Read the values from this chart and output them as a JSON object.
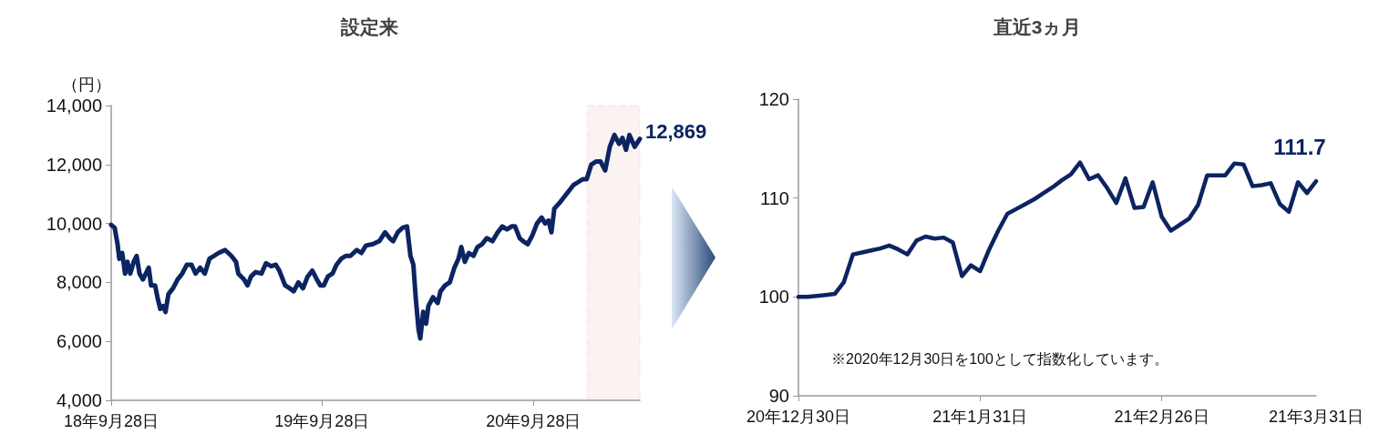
{
  "chart_data": [
    {
      "type": "line",
      "title": "設定来",
      "ylabel": "（円）",
      "color": "#0c2461",
      "marker": "none",
      "line_style": "solid",
      "grid": false,
      "x": [
        "2018-09-28",
        "2018-10-04",
        "2018-10-09",
        "2018-10-12",
        "2018-10-17",
        "2018-10-22",
        "2018-10-26",
        "2018-10-31",
        "2018-11-06",
        "2018-11-11",
        "2018-11-16",
        "2018-11-22",
        "2018-11-27",
        "2018-12-02",
        "2018-12-06",
        "2018-12-13",
        "2018-12-17",
        "2018-12-22",
        "2018-12-27",
        "2018-12-31",
        "2019-01-05",
        "2019-01-13",
        "2019-01-21",
        "2019-01-29",
        "2019-02-06",
        "2019-02-14",
        "2019-02-21",
        "2019-03-01",
        "2019-03-09",
        "2019-03-17",
        "2019-03-25",
        "2019-04-02",
        "2019-04-13",
        "2019-04-24",
        "2019-05-02",
        "2019-05-06",
        "2019-05-16",
        "2019-05-22",
        "2019-05-28",
        "2019-06-05",
        "2019-06-15",
        "2019-06-23",
        "2019-07-02",
        "2019-07-10",
        "2019-07-16",
        "2019-07-26",
        "2019-08-03",
        "2019-08-10",
        "2019-08-18",
        "2019-08-26",
        "2019-09-03",
        "2019-09-11",
        "2019-09-19",
        "2019-09-25",
        "2019-10-01",
        "2019-10-08",
        "2019-10-16",
        "2019-10-23",
        "2019-10-31",
        "2019-11-08",
        "2019-11-16",
        "2019-11-27",
        "2019-12-05",
        "2019-12-13",
        "2019-12-25",
        "2020-01-05",
        "2020-01-15",
        "2020-01-23",
        "2020-01-29",
        "2020-02-06",
        "2020-02-14",
        "2020-02-22",
        "2020-02-28",
        "2020-03-04",
        "2020-03-08",
        "2020-03-13",
        "2020-03-16",
        "2020-03-21",
        "2020-03-26",
        "2020-03-30",
        "2020-04-07",
        "2020-04-15",
        "2020-04-20",
        "2020-04-28",
        "2020-05-06",
        "2020-05-14",
        "2020-05-21",
        "2020-05-26",
        "2020-06-01",
        "2020-06-08",
        "2020-06-16",
        "2020-06-23",
        "2020-07-01",
        "2020-07-09",
        "2020-07-19",
        "2020-07-28",
        "2020-08-05",
        "2020-08-13",
        "2020-08-21",
        "2020-08-27",
        "2020-09-04",
        "2020-09-10",
        "2020-09-18",
        "2020-09-26",
        "2020-10-04",
        "2020-10-12",
        "2020-10-18",
        "2020-10-24",
        "2020-10-29",
        "2020-11-03",
        "2020-11-12",
        "2020-11-20",
        "2020-11-28",
        "2020-12-06",
        "2020-12-14",
        "2020-12-22",
        "2020-12-29",
        "2021-01-06",
        "2021-01-14",
        "2021-01-22",
        "2021-01-30",
        "2021-02-07",
        "2021-02-15",
        "2021-02-23",
        "2021-03-01",
        "2021-03-07",
        "2021-03-13",
        "2021-03-22",
        "2021-03-31"
      ],
      "values": [
        9950,
        9850,
        9300,
        8800,
        9000,
        8300,
        8700,
        8300,
        8700,
        8900,
        8300,
        8100,
        8300,
        8500,
        7900,
        7900,
        7500,
        7100,
        7200,
        7000,
        7600,
        7800,
        8100,
        8300,
        8600,
        8600,
        8300,
        8500,
        8300,
        8800,
        8900,
        9000,
        9100,
        8900,
        8700,
        8300,
        8100,
        7900,
        8200,
        8350,
        8300,
        8650,
        8550,
        8600,
        8400,
        7900,
        7800,
        7700,
        8000,
        7800,
        8200,
        8400,
        8100,
        7900,
        7900,
        8200,
        8300,
        8600,
        8800,
        8900,
        8900,
        9100,
        9000,
        9250,
        9300,
        9400,
        9700,
        9500,
        9400,
        9700,
        9850,
        9900,
        8900,
        8600,
        7500,
        6400,
        6100,
        7000,
        6600,
        7200,
        7500,
        7300,
        7700,
        7900,
        8000,
        8500,
        8800,
        9200,
        8700,
        9000,
        8900,
        9200,
        9300,
        9500,
        9400,
        9700,
        9900,
        9800,
        9900,
        9900,
        9500,
        9400,
        9300,
        9600,
        10000,
        10200,
        10000,
        10100,
        9700,
        10500,
        10700,
        10900,
        11100,
        11300,
        11400,
        11500,
        11500,
        12000,
        12100,
        12100,
        11800,
        12600,
        13000,
        12700,
        12900,
        12500,
        13000,
        12600,
        12869
      ],
      "value_labels": [
        null,
        null,
        null,
        null,
        null,
        null,
        null,
        null,
        null,
        null,
        null,
        null,
        null,
        null,
        null,
        null,
        null,
        null,
        null,
        null,
        null,
        null,
        null,
        null,
        null,
        null,
        null,
        null,
        null,
        null,
        null,
        null,
        null,
        null,
        null,
        null,
        null,
        null,
        null,
        null,
        null,
        null,
        null,
        null,
        null,
        null,
        null,
        null,
        null,
        null,
        null,
        null,
        null,
        null,
        null,
        null,
        null,
        null,
        null,
        null,
        null,
        null,
        null,
        null,
        null,
        null,
        null,
        null,
        null,
        null,
        null,
        null,
        null,
        null,
        null,
        null,
        null,
        null,
        null,
        null,
        null,
        null,
        null,
        null,
        null,
        null,
        null,
        null,
        null,
        null,
        null,
        null,
        null,
        null,
        null,
        null,
        null,
        null,
        null,
        null,
        null,
        null,
        null,
        null,
        null,
        null,
        null,
        null,
        null,
        null,
        null,
        null,
        null,
        null,
        null,
        null,
        null,
        null,
        null,
        null,
        null,
        null,
        null,
        null,
        null,
        null,
        null,
        null,
        "12,869"
      ],
      "xlim": [
        "2018-09-28",
        "2021-03-31"
      ],
      "xticks": [
        {
          "value": "2018-09-28",
          "label": "18年9月28日"
        },
        {
          "value": "2019-09-28",
          "label": "19年9月28日"
        },
        {
          "value": "2020-09-28",
          "label": "20年9月28日"
        }
      ],
      "ylim": [
        4000,
        14000
      ],
      "yticks": [
        {
          "value": 4000,
          "label": "4,000"
        },
        {
          "value": 6000,
          "label": "6,000"
        },
        {
          "value": 8000,
          "label": "8,000"
        },
        {
          "value": 10000,
          "label": "10,000"
        },
        {
          "value": 12000,
          "label": "12,000"
        },
        {
          "value": 14000,
          "label": "14,000"
        }
      ],
      "bands": [
        {
          "axis": "x",
          "from": "2020-12-30",
          "to": "2021-03-31",
          "color": "#e09a94"
        }
      ]
    },
    {
      "type": "line",
      "title": "直近3ヵ月",
      "color": "#0c2461",
      "marker": "none",
      "line_style": "solid",
      "grid": false,
      "categories": [
        "20年12月30日",
        null,
        null,
        null,
        null,
        null,
        null,
        null,
        null,
        null,
        null,
        null,
        null,
        null,
        null,
        null,
        null,
        null,
        null,
        null,
        "21年1月31日",
        null,
        null,
        null,
        null,
        null,
        null,
        null,
        null,
        null,
        null,
        null,
        null,
        null,
        null,
        null,
        null,
        null,
        null,
        null,
        "21年2月26日",
        null,
        null,
        null,
        null,
        null,
        null,
        null,
        null,
        null,
        null,
        null,
        null,
        null,
        null,
        null,
        null,
        "21年3月31日"
      ],
      "values": [
        100.0,
        100.0,
        100.1,
        100.2,
        100.3,
        101.5,
        104.3,
        104.5,
        104.7,
        104.9,
        105.2,
        104.8,
        104.3,
        105.7,
        106.1,
        105.9,
        106.0,
        105.5,
        102.1,
        103.2,
        102.6,
        104.8,
        106.7,
        108.4,
        108.9,
        109.4,
        109.9,
        110.5,
        111.1,
        111.8,
        112.4,
        113.6,
        111.9,
        112.3,
        111.0,
        109.5,
        112.0,
        109.0,
        109.1,
        111.6,
        108.1,
        106.7,
        107.3,
        107.9,
        109.3,
        112.3,
        112.3,
        112.3,
        113.5,
        113.4,
        111.2,
        111.3,
        111.5,
        109.4,
        108.6,
        111.6,
        110.5,
        111.7
      ],
      "value_labels": [
        null,
        null,
        null,
        null,
        null,
        null,
        null,
        null,
        null,
        null,
        null,
        null,
        null,
        null,
        null,
        null,
        null,
        null,
        null,
        null,
        null,
        null,
        null,
        null,
        null,
        null,
        null,
        null,
        null,
        null,
        null,
        null,
        null,
        null,
        null,
        null,
        null,
        null,
        null,
        null,
        null,
        null,
        null,
        null,
        null,
        null,
        null,
        null,
        null,
        null,
        null,
        null,
        null,
        null,
        null,
        null,
        null,
        "111.7"
      ],
      "ylim": [
        90,
        120
      ],
      "yticks": [
        90,
        100,
        110,
        120
      ],
      "annotations": [
        "※2020年12月30日を100として指数化しています。"
      ]
    }
  ]
}
